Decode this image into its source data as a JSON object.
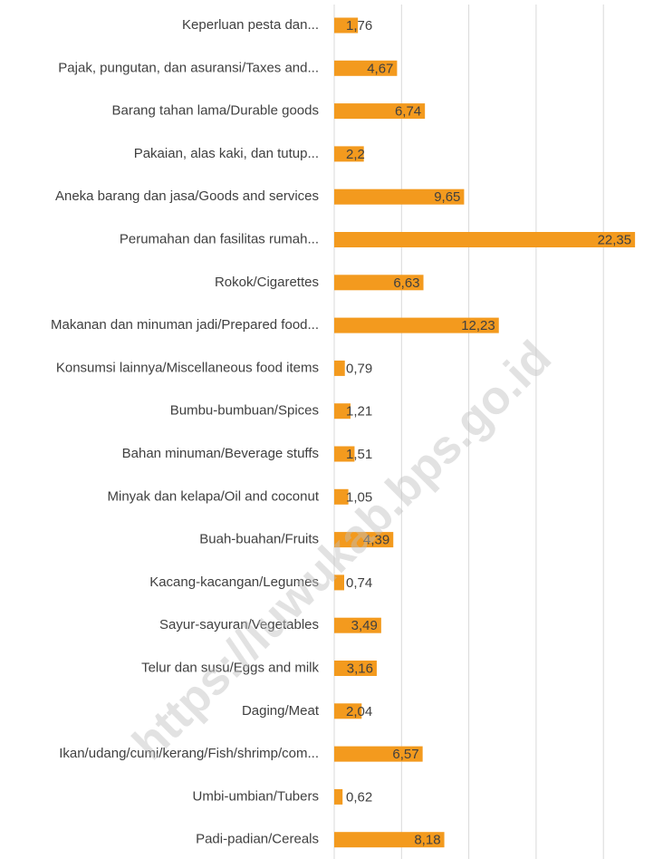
{
  "chart_data": {
    "type": "barh",
    "categories": [
      "Keperluan pesta dan...",
      "Pajak, pungutan, dan asuransi/Taxes and...",
      "Barang tahan lama/Durable goods",
      "Pakaian, alas kaki, dan tutup...",
      "Aneka barang dan jasa/Goods and services",
      "Perumahan dan fasilitas rumah...",
      "Rokok/Cigarettes",
      "Makanan dan minuman jadi/Prepared food...",
      "Konsumsi lainnya/Miscellaneous food items",
      "Bumbu-bumbuan/Spices",
      "Bahan minuman/Beverage stuffs",
      "Minyak dan kelapa/Oil and coconut",
      "Buah-buahan/Fruits",
      "Kacang-kacangan/Legumes",
      "Sayur-sayuran/Vegetables",
      "Telur dan susu/Eggs and milk",
      "Daging/Meat",
      "Ikan/udang/cumi/kerang/Fish/shrimp/com...",
      "Umbi-umbian/Tubers",
      "Padi-padian/Cereals"
    ],
    "values": [
      1.76,
      4.67,
      6.74,
      2.2,
      9.65,
      22.35,
      6.63,
      12.23,
      0.79,
      1.21,
      1.51,
      1.05,
      4.39,
      0.74,
      3.49,
      3.16,
      2.04,
      6.57,
      0.62,
      8.18
    ],
    "value_labels": [
      "1,76",
      "4,67",
      "6,74",
      "2,2",
      "9,65",
      "22,35",
      "6,63",
      "12,23",
      "0,79",
      "1,21",
      "1,51",
      "1,05",
      "4,39",
      "0,74",
      "3,49",
      "3,16",
      "2,04",
      "6,57",
      "0,62",
      "8,18"
    ],
    "color": "#f39a1e",
    "xlim": [
      0,
      24
    ],
    "xticks": [
      0,
      5,
      10,
      15,
      20
    ],
    "grid": true,
    "watermark": "https://luwukab.bps.go.id"
  }
}
